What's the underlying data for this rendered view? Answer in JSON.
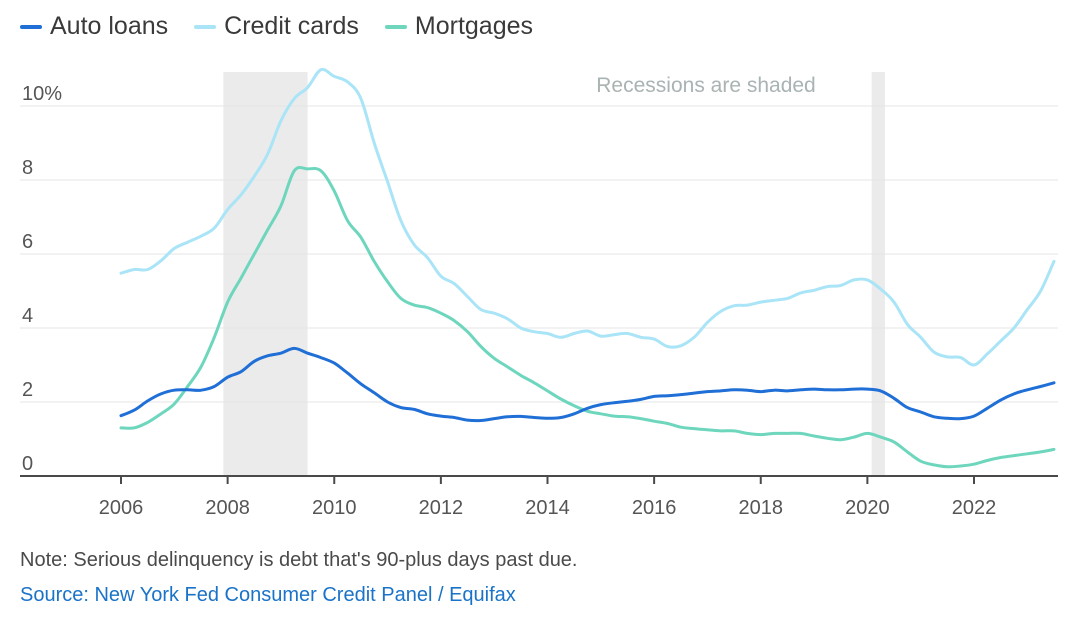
{
  "legend": [
    {
      "label": "Auto loans",
      "color": "#1f6fd6"
    },
    {
      "label": "Credit cards",
      "color": "#a9e4f7"
    },
    {
      "label": "Mortgages",
      "color": "#6dd6bd"
    }
  ],
  "note": "Note: Serious delinquency is debt that's 90-plus days past due.",
  "source": "Source: New York Fed Consumer Credit Panel / Equifax",
  "chart_data": {
    "type": "line",
    "recession_label": "Recessions are shaded",
    "recessions": [
      [
        2007.92,
        2009.5
      ],
      [
        2020.08,
        2020.33
      ]
    ],
    "xlim": [
      2005.8,
      2023.7
    ],
    "ylim": [
      -0.5,
      11.1
    ],
    "x_ticks": [
      2006,
      2008,
      2010,
      2012,
      2014,
      2016,
      2018,
      2020,
      2022
    ],
    "y_ticks": [
      {
        "v": 0,
        "label": "0"
      },
      {
        "v": 2,
        "label": "2"
      },
      {
        "v": 4,
        "label": "4"
      },
      {
        "v": 6,
        "label": "6"
      },
      {
        "v": 8,
        "label": "8"
      },
      {
        "v": 10,
        "label": "10%"
      }
    ],
    "grid": true,
    "series": [
      {
        "name": "Auto loans",
        "color": "#1f6fd6",
        "points": [
          [
            2006.0,
            1.63
          ],
          [
            2006.25,
            1.78
          ],
          [
            2006.5,
            2.03
          ],
          [
            2006.75,
            2.22
          ],
          [
            2007.0,
            2.32
          ],
          [
            2007.25,
            2.33
          ],
          [
            2007.5,
            2.32
          ],
          [
            2007.75,
            2.42
          ],
          [
            2008.0,
            2.67
          ],
          [
            2008.25,
            2.82
          ],
          [
            2008.5,
            3.1
          ],
          [
            2008.75,
            3.25
          ],
          [
            2009.0,
            3.32
          ],
          [
            2009.25,
            3.45
          ],
          [
            2009.5,
            3.32
          ],
          [
            2009.75,
            3.2
          ],
          [
            2010.0,
            3.05
          ],
          [
            2010.25,
            2.78
          ],
          [
            2010.5,
            2.49
          ],
          [
            2010.75,
            2.25
          ],
          [
            2011.0,
            2.0
          ],
          [
            2011.25,
            1.85
          ],
          [
            2011.5,
            1.8
          ],
          [
            2011.75,
            1.68
          ],
          [
            2012.0,
            1.62
          ],
          [
            2012.25,
            1.58
          ],
          [
            2012.5,
            1.51
          ],
          [
            2012.75,
            1.5
          ],
          [
            2013.0,
            1.55
          ],
          [
            2013.25,
            1.6
          ],
          [
            2013.5,
            1.61
          ],
          [
            2013.75,
            1.58
          ],
          [
            2014.0,
            1.56
          ],
          [
            2014.25,
            1.58
          ],
          [
            2014.5,
            1.68
          ],
          [
            2014.75,
            1.83
          ],
          [
            2015.0,
            1.93
          ],
          [
            2015.25,
            1.98
          ],
          [
            2015.5,
            2.02
          ],
          [
            2015.75,
            2.07
          ],
          [
            2016.0,
            2.15
          ],
          [
            2016.25,
            2.17
          ],
          [
            2016.5,
            2.2
          ],
          [
            2016.75,
            2.24
          ],
          [
            2017.0,
            2.28
          ],
          [
            2017.25,
            2.3
          ],
          [
            2017.5,
            2.33
          ],
          [
            2017.75,
            2.32
          ],
          [
            2018.0,
            2.28
          ],
          [
            2018.25,
            2.32
          ],
          [
            2018.5,
            2.3
          ],
          [
            2018.75,
            2.33
          ],
          [
            2019.0,
            2.35
          ],
          [
            2019.25,
            2.33
          ],
          [
            2019.5,
            2.33
          ],
          [
            2019.75,
            2.35
          ],
          [
            2020.0,
            2.35
          ],
          [
            2020.25,
            2.3
          ],
          [
            2020.5,
            2.1
          ],
          [
            2020.75,
            1.85
          ],
          [
            2021.0,
            1.73
          ],
          [
            2021.25,
            1.6
          ],
          [
            2021.5,
            1.56
          ],
          [
            2021.75,
            1.55
          ],
          [
            2022.0,
            1.62
          ],
          [
            2022.25,
            1.83
          ],
          [
            2022.5,
            2.05
          ],
          [
            2022.75,
            2.22
          ],
          [
            2023.0,
            2.33
          ],
          [
            2023.25,
            2.42
          ],
          [
            2023.5,
            2.52
          ]
        ]
      },
      {
        "name": "Credit cards",
        "color": "#a9e4f7",
        "points": [
          [
            2006.0,
            5.48
          ],
          [
            2006.25,
            5.58
          ],
          [
            2006.5,
            5.58
          ],
          [
            2006.75,
            5.82
          ],
          [
            2007.0,
            6.15
          ],
          [
            2007.25,
            6.32
          ],
          [
            2007.5,
            6.48
          ],
          [
            2007.75,
            6.7
          ],
          [
            2008.0,
            7.2
          ],
          [
            2008.25,
            7.6
          ],
          [
            2008.5,
            8.1
          ],
          [
            2008.75,
            8.7
          ],
          [
            2009.0,
            9.6
          ],
          [
            2009.25,
            10.2
          ],
          [
            2009.5,
            10.5
          ],
          [
            2009.75,
            10.98
          ],
          [
            2010.0,
            10.8
          ],
          [
            2010.25,
            10.65
          ],
          [
            2010.5,
            10.2
          ],
          [
            2010.75,
            9.0
          ],
          [
            2011.0,
            7.95
          ],
          [
            2011.25,
            6.9
          ],
          [
            2011.5,
            6.25
          ],
          [
            2011.75,
            5.9
          ],
          [
            2012.0,
            5.4
          ],
          [
            2012.25,
            5.2
          ],
          [
            2012.5,
            4.85
          ],
          [
            2012.75,
            4.5
          ],
          [
            2013.0,
            4.4
          ],
          [
            2013.25,
            4.25
          ],
          [
            2013.5,
            4.0
          ],
          [
            2013.75,
            3.9
          ],
          [
            2014.0,
            3.85
          ],
          [
            2014.25,
            3.75
          ],
          [
            2014.5,
            3.85
          ],
          [
            2014.75,
            3.92
          ],
          [
            2015.0,
            3.78
          ],
          [
            2015.25,
            3.82
          ],
          [
            2015.5,
            3.85
          ],
          [
            2015.75,
            3.75
          ],
          [
            2016.0,
            3.7
          ],
          [
            2016.25,
            3.5
          ],
          [
            2016.5,
            3.52
          ],
          [
            2016.75,
            3.75
          ],
          [
            2017.0,
            4.15
          ],
          [
            2017.25,
            4.45
          ],
          [
            2017.5,
            4.6
          ],
          [
            2017.75,
            4.62
          ],
          [
            2018.0,
            4.7
          ],
          [
            2018.25,
            4.75
          ],
          [
            2018.5,
            4.8
          ],
          [
            2018.75,
            4.95
          ],
          [
            2019.0,
            5.02
          ],
          [
            2019.25,
            5.12
          ],
          [
            2019.5,
            5.15
          ],
          [
            2019.75,
            5.3
          ],
          [
            2020.0,
            5.3
          ],
          [
            2020.25,
            5.05
          ],
          [
            2020.5,
            4.7
          ],
          [
            2020.75,
            4.1
          ],
          [
            2021.0,
            3.75
          ],
          [
            2021.25,
            3.35
          ],
          [
            2021.5,
            3.22
          ],
          [
            2021.75,
            3.2
          ],
          [
            2022.0,
            3.0
          ],
          [
            2022.25,
            3.3
          ],
          [
            2022.5,
            3.65
          ],
          [
            2022.75,
            4.0
          ],
          [
            2023.0,
            4.5
          ],
          [
            2023.25,
            5.0
          ],
          [
            2023.5,
            5.8
          ]
        ]
      },
      {
        "name": "Mortgages",
        "color": "#6dd6bd",
        "points": [
          [
            2006.0,
            1.3
          ],
          [
            2006.25,
            1.3
          ],
          [
            2006.5,
            1.45
          ],
          [
            2006.75,
            1.68
          ],
          [
            2007.0,
            1.95
          ],
          [
            2007.25,
            2.42
          ],
          [
            2007.5,
            2.95
          ],
          [
            2007.75,
            3.75
          ],
          [
            2008.0,
            4.7
          ],
          [
            2008.25,
            5.35
          ],
          [
            2008.5,
            6.0
          ],
          [
            2008.75,
            6.65
          ],
          [
            2009.0,
            7.3
          ],
          [
            2009.25,
            8.25
          ],
          [
            2009.5,
            8.3
          ],
          [
            2009.75,
            8.25
          ],
          [
            2010.0,
            7.7
          ],
          [
            2010.25,
            6.9
          ],
          [
            2010.5,
            6.45
          ],
          [
            2010.75,
            5.8
          ],
          [
            2011.0,
            5.25
          ],
          [
            2011.25,
            4.8
          ],
          [
            2011.5,
            4.62
          ],
          [
            2011.75,
            4.55
          ],
          [
            2012.0,
            4.4
          ],
          [
            2012.25,
            4.2
          ],
          [
            2012.5,
            3.9
          ],
          [
            2012.75,
            3.5
          ],
          [
            2013.0,
            3.18
          ],
          [
            2013.25,
            2.95
          ],
          [
            2013.5,
            2.72
          ],
          [
            2013.75,
            2.52
          ],
          [
            2014.0,
            2.3
          ],
          [
            2014.25,
            2.08
          ],
          [
            2014.5,
            1.9
          ],
          [
            2014.75,
            1.75
          ],
          [
            2015.0,
            1.68
          ],
          [
            2015.25,
            1.62
          ],
          [
            2015.5,
            1.6
          ],
          [
            2015.75,
            1.55
          ],
          [
            2016.0,
            1.48
          ],
          [
            2016.25,
            1.42
          ],
          [
            2016.5,
            1.32
          ],
          [
            2016.75,
            1.28
          ],
          [
            2017.0,
            1.25
          ],
          [
            2017.25,
            1.22
          ],
          [
            2017.5,
            1.22
          ],
          [
            2017.75,
            1.15
          ],
          [
            2018.0,
            1.12
          ],
          [
            2018.25,
            1.15
          ],
          [
            2018.5,
            1.15
          ],
          [
            2018.75,
            1.15
          ],
          [
            2019.0,
            1.08
          ],
          [
            2019.25,
            1.02
          ],
          [
            2019.5,
            0.98
          ],
          [
            2019.75,
            1.05
          ],
          [
            2020.0,
            1.15
          ],
          [
            2020.25,
            1.05
          ],
          [
            2020.5,
            0.92
          ],
          [
            2020.75,
            0.65
          ],
          [
            2021.0,
            0.4
          ],
          [
            2021.25,
            0.3
          ],
          [
            2021.5,
            0.25
          ],
          [
            2021.75,
            0.27
          ],
          [
            2022.0,
            0.32
          ],
          [
            2022.25,
            0.42
          ],
          [
            2022.5,
            0.5
          ],
          [
            2022.75,
            0.55
          ],
          [
            2023.0,
            0.6
          ],
          [
            2023.25,
            0.65
          ],
          [
            2023.5,
            0.72
          ]
        ]
      }
    ]
  }
}
